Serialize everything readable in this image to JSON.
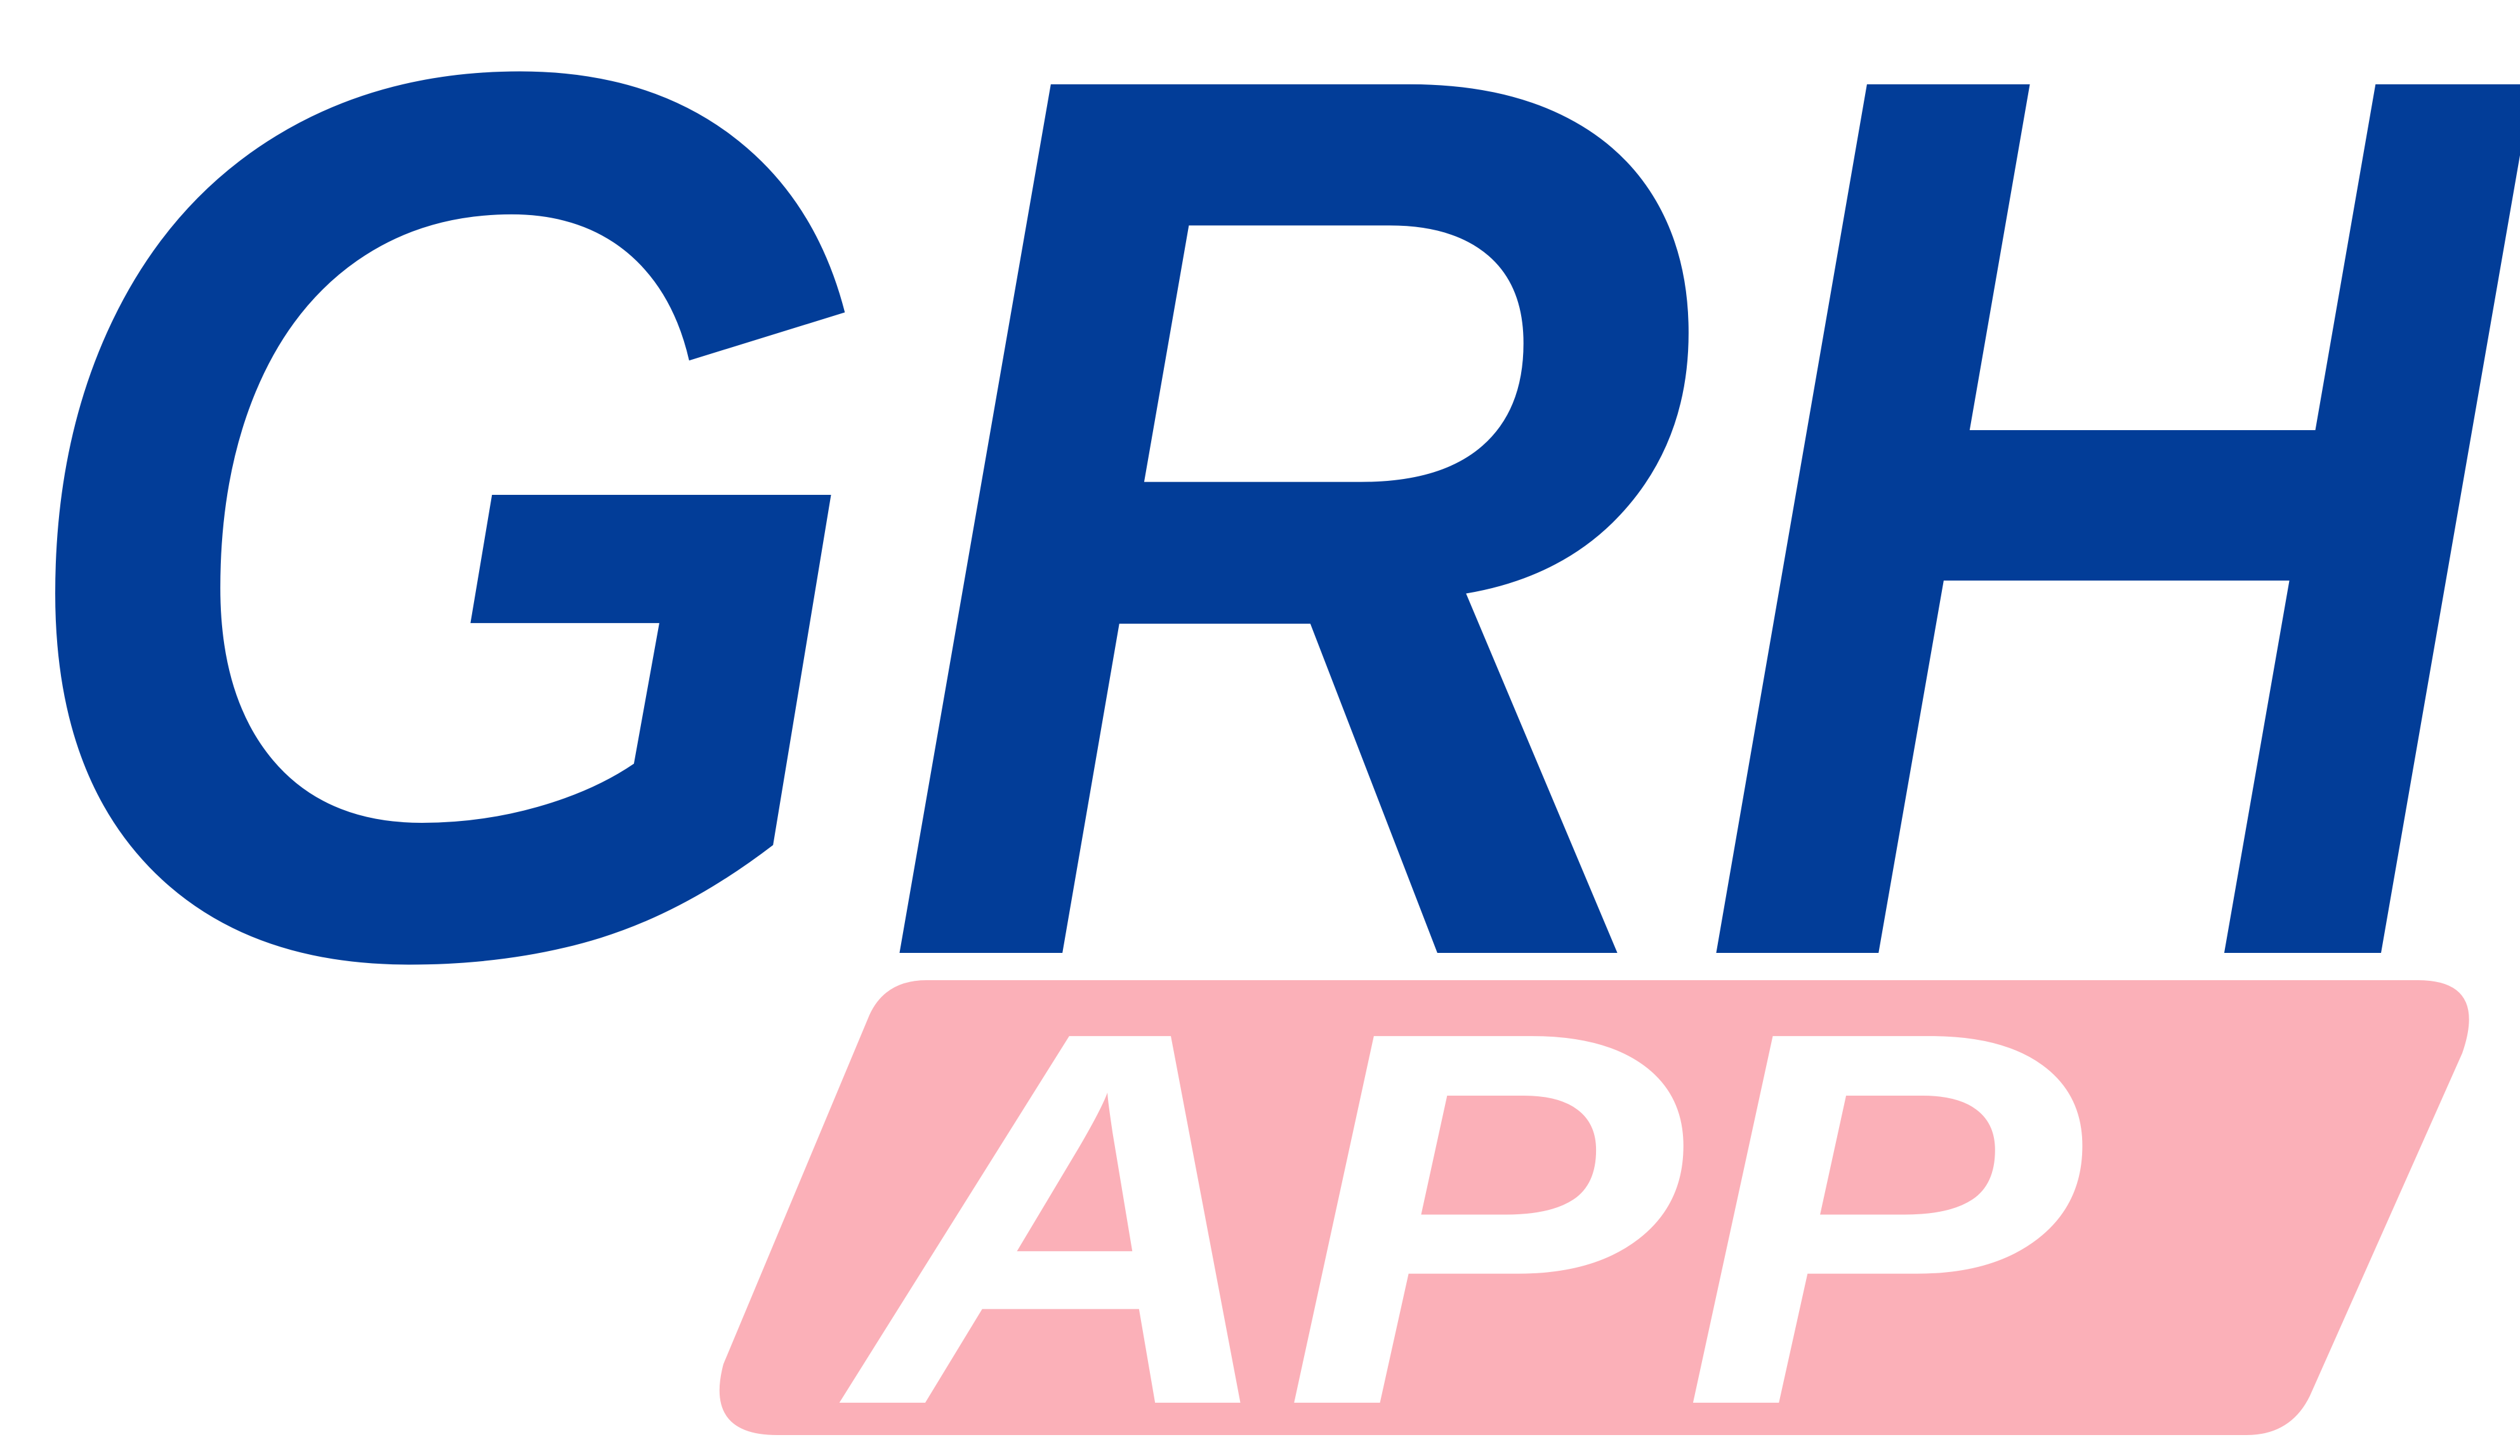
{
  "logo": {
    "title": "GRH",
    "badge": "APP"
  }
}
